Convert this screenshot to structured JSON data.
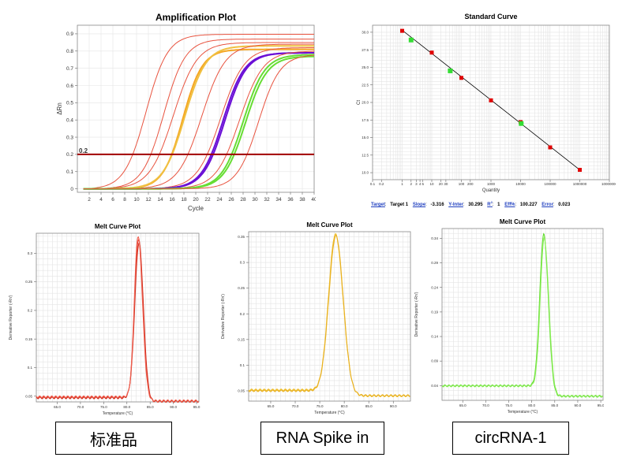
{
  "chart_data": [
    {
      "id": "amp",
      "type": "line",
      "title": "Amplification Plot",
      "xlabel": "Cycle",
      "ylabel": "ΔRn",
      "xlim": [
        0,
        40
      ],
      "ylim": [
        -0.02,
        0.95
      ],
      "xticks": [
        2,
        4,
        6,
        8,
        10,
        12,
        14,
        16,
        18,
        20,
        22,
        24,
        26,
        28,
        30,
        32,
        34,
        36,
        38,
        40
      ],
      "yticks": [
        0,
        0.1,
        0.2,
        0.3,
        0.4,
        0.5,
        0.6,
        0.7,
        0.8,
        0.9
      ],
      "threshold": {
        "value": 0.2,
        "label": "0.2",
        "color": "#a00000"
      },
      "grid": true,
      "series": [
        {
          "color": "#e8533f",
          "values": {
            "ct": 11.6,
            "plateau": 0.9,
            "k": 0.55
          }
        },
        {
          "color": "#e8533f",
          "values": {
            "ct": 14.6,
            "plateau": 0.87,
            "k": 0.55
          }
        },
        {
          "color": "#e8533f",
          "values": {
            "ct": 16.2,
            "plateau": 0.85,
            "k": 0.5
          }
        },
        {
          "color": "#f5a623",
          "values": {
            "ct": 17.8,
            "plateau": 0.81,
            "k": 0.6
          }
        },
        {
          "color": "#f0c040",
          "values": {
            "ct": 18.1,
            "plateau": 0.83,
            "k": 0.55
          }
        },
        {
          "color": "#e8533f",
          "values": {
            "ct": 21.0,
            "plateau": 0.84,
            "k": 0.5
          }
        },
        {
          "color": "#e8533f",
          "values": {
            "ct": 24.2,
            "plateau": 0.82,
            "k": 0.5
          }
        },
        {
          "color": "#6a0fd6",
          "values": {
            "ct": 24.6,
            "plateau": 0.79,
            "k": 0.55
          }
        },
        {
          "color": "#6a0fd6",
          "values": {
            "ct": 24.9,
            "plateau": 0.79,
            "k": 0.55
          }
        },
        {
          "color": "#e8533f",
          "values": {
            "ct": 27.4,
            "plateau": 0.8,
            "k": 0.5
          }
        },
        {
          "color": "#66dd33",
          "values": {
            "ct": 28.0,
            "plateau": 0.78,
            "k": 0.55
          }
        },
        {
          "color": "#66dd33",
          "values": {
            "ct": 28.4,
            "plateau": 0.77,
            "k": 0.55
          }
        },
        {
          "color": "#e8533f",
          "values": {
            "ct": 30.6,
            "plateau": 0.78,
            "k": 0.55
          }
        }
      ]
    },
    {
      "id": "std",
      "type": "scatter",
      "title": "Standard Curve",
      "xlabel": "Quantity",
      "ylabel": "Ct",
      "xscale": "log",
      "xlim": [
        0.1,
        10000000
      ],
      "ylim": [
        9,
        31
      ],
      "xticks": [
        0.1,
        0.2,
        1,
        2,
        3,
        4,
        5,
        10,
        20,
        30,
        100,
        200,
        1000,
        10000,
        100000,
        1000000,
        10000000
      ],
      "xticklabels": [
        "0.1",
        "0.2",
        "1",
        "2",
        "3",
        "4",
        "5",
        "10",
        "20",
        "30",
        "100",
        "200",
        "1000",
        "10000",
        "100000",
        "1000000",
        "10000000"
      ],
      "yticks": [
        10.0,
        12.5,
        15.0,
        17.5,
        20.0,
        22.5,
        25.0,
        27.5,
        30.0
      ],
      "yticklabels": [
        "10.0",
        "12.5",
        "15.0",
        "17.5",
        "20.0",
        "22.5",
        "25.0",
        "27.5",
        "30.0"
      ],
      "grid": true,
      "fit": {
        "slope": -3.316,
        "intercept": 30.295
      },
      "standards": {
        "color": "#e00000",
        "x": [
          1,
          10,
          100,
          1000,
          10000,
          100000,
          1000000
        ],
        "y": [
          30.2,
          27.1,
          23.5,
          20.3,
          17.2,
          13.6,
          10.4
        ]
      },
      "unknowns": {
        "color": "#33dd33",
        "x": [
          2.0,
          42,
          10500
        ],
        "y": [
          28.9,
          24.5,
          17.0
        ]
      }
    },
    {
      "id": "melt1",
      "type": "line",
      "title": "Melt Curve Plot",
      "xlabel": "Temperature (°C)",
      "ylabel": "Derivative Reporter (-Rn')",
      "xlim": [
        60.5,
        95.5
      ],
      "ylim": [
        0.04,
        0.335
      ],
      "xticks": [
        65.0,
        70.0,
        75.0,
        80.0,
        85.0,
        90.0,
        95.0
      ],
      "xticklabels": [
        "65.0",
        "70.0",
        "75.0",
        "80.0",
        "85.0",
        "90.0",
        "95.0"
      ],
      "yticks": [
        0.05,
        0.1,
        0.15,
        0.2,
        0.25,
        0.3
      ],
      "yticklabels": [
        "0.05",
        "0.1",
        "0.15",
        "0.2",
        "0.25",
        "0.3"
      ],
      "grid": true,
      "series": [
        {
          "color": "#e84030",
          "values": {
            "base": 0.048,
            "peakT": 82.5,
            "peakH": 0.325,
            "sigmaL": 0.85,
            "sigmaR": 0.95,
            "after": 0.041
          }
        },
        {
          "color": "#d03020",
          "values": {
            "base": 0.047,
            "peakT": 82.6,
            "peakH": 0.318,
            "sigmaL": 0.9,
            "sigmaR": 0.95,
            "after": 0.041
          }
        },
        {
          "color": "#f06050",
          "values": {
            "base": 0.049,
            "peakT": 82.4,
            "peakH": 0.33,
            "sigmaL": 0.8,
            "sigmaR": 0.95,
            "after": 0.042
          }
        }
      ]
    },
    {
      "id": "melt2",
      "type": "line",
      "title": "Melt Curve Plot",
      "xlabel": "Temperature (°C)",
      "ylabel": "Derivative Reporter (-Rn')",
      "xlim": [
        60.5,
        93.5
      ],
      "ylim": [
        0.03,
        0.36
      ],
      "xticks": [
        65.0,
        70.0,
        75.0,
        80.0,
        85.0,
        90.0
      ],
      "xticklabels": [
        "65.0",
        "70.0",
        "75.0",
        "80.0",
        "85.0",
        "90.0"
      ],
      "yticks": [
        0.05,
        0.1,
        0.15,
        0.2,
        0.25,
        0.3,
        0.35
      ],
      "yticklabels": [
        "0.05",
        "0.1",
        "0.15",
        "0.2",
        "0.25",
        "0.3",
        "0.35"
      ],
      "grid": true,
      "series": [
        {
          "color": "#f0c030",
          "values": {
            "base": 0.052,
            "peakT": 78.2,
            "peakH": 0.355,
            "sigmaL": 1.4,
            "sigmaR": 1.55,
            "after": 0.04
          }
        },
        {
          "color": "#e8b020",
          "values": {
            "base": 0.05,
            "peakT": 78.3,
            "peakH": 0.352,
            "sigmaL": 1.45,
            "sigmaR": 1.5,
            "after": 0.041
          }
        }
      ]
    },
    {
      "id": "melt3",
      "type": "line",
      "title": "Melt Curve Plot",
      "xlabel": "Temperature (°C)",
      "ylabel": "Derivative Reporter (-Rn')",
      "xlim": [
        60.5,
        95.5
      ],
      "ylim": [
        0.01,
        0.36
      ],
      "xticks": [
        65.0,
        70.0,
        75.0,
        80.0,
        85.0,
        90.0,
        95.0
      ],
      "xticklabels": [
        "65.0",
        "70.0",
        "75.0",
        "80.0",
        "85.0",
        "90.0",
        "95.0"
      ],
      "yticks": [
        0.04,
        0.09,
        0.14,
        0.19,
        0.24,
        0.29,
        0.34
      ],
      "yticklabels": [
        "0.04",
        "0.09",
        "0.14",
        "0.19",
        "0.24",
        "0.29",
        "0.34"
      ],
      "grid": true,
      "series": [
        {
          "color": "#66dd33",
          "values": {
            "base": 0.04,
            "peakT": 82.6,
            "peakH": 0.348,
            "sigmaL": 0.85,
            "sigmaR": 1.0,
            "after": 0.018
          }
        },
        {
          "color": "#88ee55",
          "values": {
            "base": 0.039,
            "peakT": 82.7,
            "peakH": 0.34,
            "sigmaL": 0.85,
            "sigmaR": 1.0,
            "after": 0.019
          }
        }
      ]
    }
  ],
  "stats": {
    "target_key": "Target",
    "target_val": "Target 1",
    "slope_key": "Slope",
    "slope_val": "-3.316",
    "yinter_key": "Y-Inter",
    "yinter_val": "30.295",
    "r2_key": "R",
    "r2_sup": "2",
    "r2_val": "1",
    "eff_key": "Eff%",
    "eff_val": "100.227",
    "error_key": "Error",
    "error_val": "0.023"
  },
  "labels": [
    "标准品",
    "RNA Spike in",
    "circRNA-1"
  ]
}
